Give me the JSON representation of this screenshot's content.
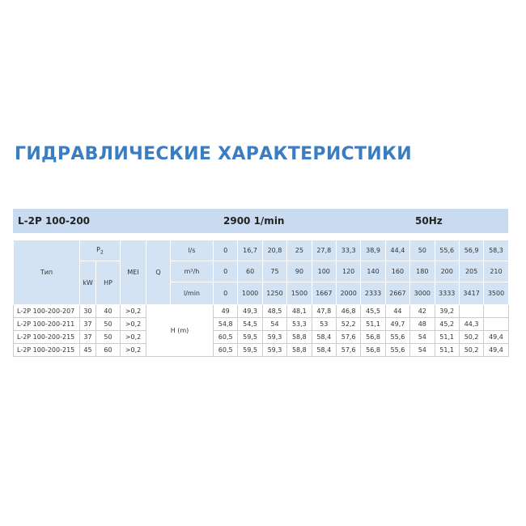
{
  "title": "ГИДРАВЛИЧЕСКИЕ ХАРАКТЕРИСТИКИ",
  "bar": {
    "model": "L-2P 100-200",
    "speed": "2900 1/min",
    "frequency": "50Hz"
  },
  "table": {
    "header": {
      "type": "Тип",
      "power": "P",
      "power_sub": "2",
      "kw": "kW",
      "hp": "HP",
      "mei": "MEI",
      "q": "Q",
      "head": "H (m)"
    },
    "flow": [
      {
        "unit": "l/s",
        "values": [
          "0",
          "16,7",
          "20,8",
          "25",
          "27,8",
          "33,3",
          "38,9",
          "44,4",
          "50",
          "55,6",
          "56,9",
          "58,3"
        ]
      },
      {
        "unit": "m³/h",
        "values": [
          "0",
          "60",
          "75",
          "90",
          "100",
          "120",
          "140",
          "160",
          "180",
          "200",
          "205",
          "210"
        ]
      },
      {
        "unit": "l/min",
        "values": [
          "0",
          "1000",
          "1250",
          "1500",
          "1667",
          "2000",
          "2333",
          "2667",
          "3000",
          "3333",
          "3417",
          "3500"
        ]
      }
    ],
    "rows": [
      {
        "type": "L-2P 100-200-207",
        "kw": "30",
        "hp": "40",
        "mei": ">0,2",
        "values": [
          "49",
          "49,3",
          "48,5",
          "48,1",
          "47,8",
          "46,8",
          "45,5",
          "44",
          "42",
          "39,2",
          null,
          null
        ]
      },
      {
        "type": "L-2P 100-200-211",
        "kw": "37",
        "hp": "50",
        "mei": ">0,2",
        "values": [
          "54,8",
          "54,5",
          "54",
          "53,3",
          "53",
          "52,2",
          "51,1",
          "49,7",
          "48",
          "45,2",
          "44,3",
          null
        ]
      },
      {
        "type": "L-2P 100-200-215",
        "kw": "37",
        "hp": "50",
        "mei": ">0,2",
        "values": [
          "60,5",
          "59,5",
          "59,3",
          "58,8",
          "58,4",
          "57,6",
          "56,8",
          "55,6",
          "54",
          "51,1",
          "50,2",
          "49,4"
        ]
      },
      {
        "type": "L-2P 100-200-215",
        "kw": "45",
        "hp": "60",
        "mei": ">0,2",
        "values": [
          "60,5",
          "59,5",
          "59,3",
          "58,8",
          "58,4",
          "57,6",
          "56,8",
          "55,6",
          "54",
          "51,1",
          "50,2",
          "49,4"
        ]
      }
    ]
  }
}
